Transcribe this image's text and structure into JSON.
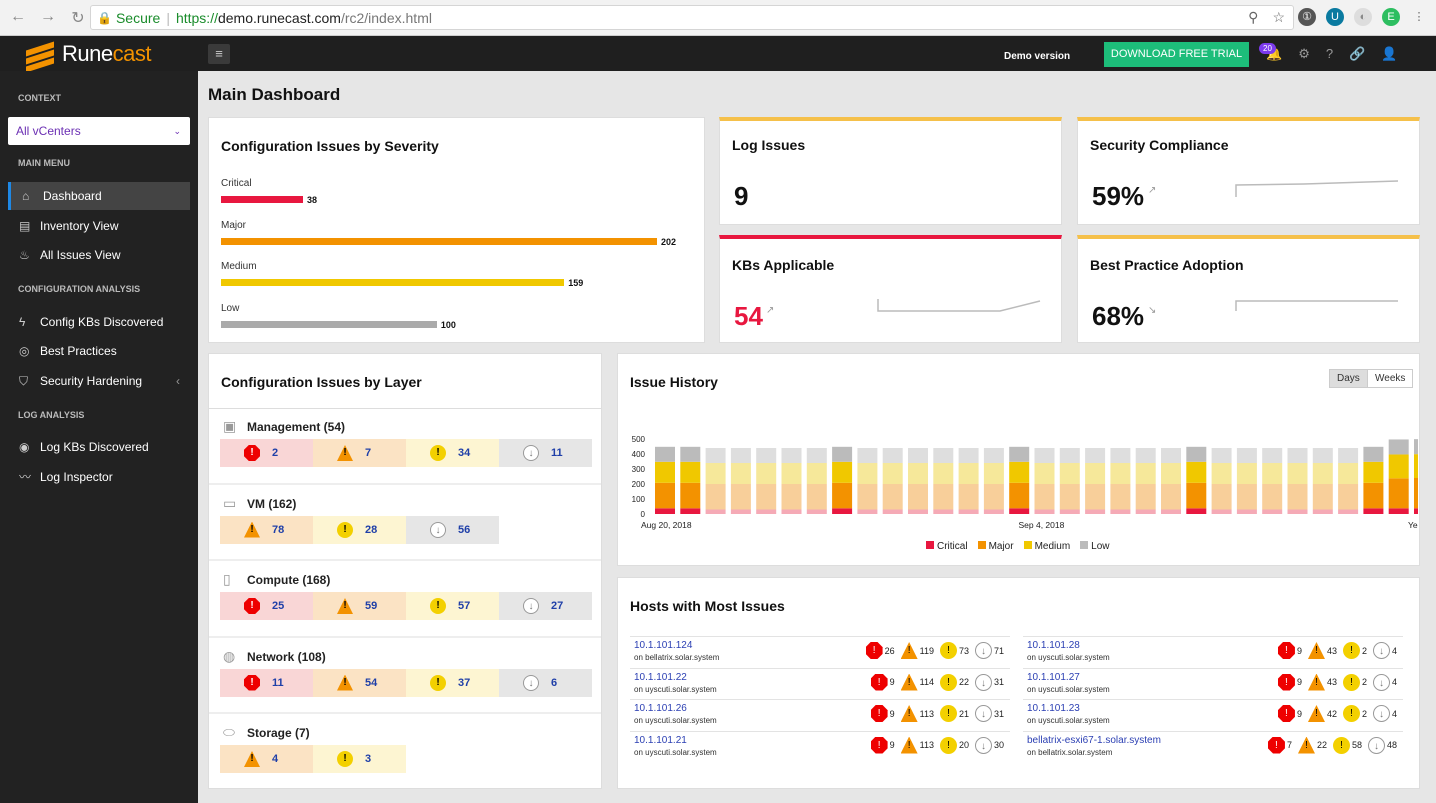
{
  "browser": {
    "secure_label": "Secure",
    "url_scheme": "https://",
    "url_host": "demo.runecast.com",
    "url_path": "/rc2/index.html"
  },
  "app": {
    "brand_a": "Rune",
    "brand_b": "cast",
    "demo_label": "Demo version",
    "trial_label": "DOWNLOAD FREE TRIAL",
    "notification_count": "20"
  },
  "sidebar": {
    "context_header": "CONTEXT",
    "context_value": "All vCenters",
    "main_menu_header": "MAIN MENU",
    "config_header": "CONFIGURATION ANALYSIS",
    "log_header": "LOG ANALYSIS",
    "items": [
      {
        "label": "Dashboard",
        "icon": "home-icon"
      },
      {
        "label": "Inventory View",
        "icon": "book-icon"
      },
      {
        "label": "All Issues View",
        "icon": "fire-icon"
      },
      {
        "label": "Config KBs Discovered",
        "icon": "bolt-icon"
      },
      {
        "label": "Best Practices",
        "icon": "compass-icon"
      },
      {
        "label": "Security Hardening",
        "icon": "shield-icon"
      },
      {
        "label": "Log KBs Discovered",
        "icon": "eye-icon"
      },
      {
        "label": "Log Inspector",
        "icon": "chart-line-icon"
      }
    ]
  },
  "page_title": "Main Dashboard",
  "severity": {
    "title": "Configuration Issues by Severity",
    "rows": [
      {
        "label": "Critical",
        "value": 38,
        "color": "#e8173f"
      },
      {
        "label": "Major",
        "value": 202,
        "color": "#f39200"
      },
      {
        "label": "Medium",
        "value": 159,
        "color": "#f0c800"
      },
      {
        "label": "Low",
        "value": 100,
        "color": "#aaaaaa"
      }
    ]
  },
  "kpis": {
    "log_title": "Log Issues",
    "log_value": "9",
    "sec_title": "Security Compliance",
    "sec_value": "59%",
    "kb_title": "KBs Applicable",
    "kb_value": "54",
    "bp_title": "Best Practice Adoption",
    "bp_value": "68%"
  },
  "layers": {
    "title": "Configuration Issues by Layer",
    "items": [
      {
        "name": "Management (54)",
        "cells": [
          [
            "crit",
            "2"
          ],
          [
            "maj",
            "7"
          ],
          [
            "med",
            "34"
          ],
          [
            "low",
            "11"
          ]
        ]
      },
      {
        "name": "VM (162)",
        "cells": [
          [
            "maj",
            "78"
          ],
          [
            "med",
            "28"
          ],
          [
            "low",
            "56"
          ]
        ]
      },
      {
        "name": "Compute (168)",
        "cells": [
          [
            "crit",
            "25"
          ],
          [
            "maj",
            "59"
          ],
          [
            "med",
            "57"
          ],
          [
            "low",
            "27"
          ]
        ]
      },
      {
        "name": "Network (108)",
        "cells": [
          [
            "crit",
            "11"
          ],
          [
            "maj",
            "54"
          ],
          [
            "med",
            "37"
          ],
          [
            "low",
            "6"
          ]
        ]
      },
      {
        "name": "Storage (7)",
        "cells": [
          [
            "maj",
            "4"
          ],
          [
            "med",
            "3"
          ]
        ]
      }
    ]
  },
  "history": {
    "title": "Issue History",
    "btn_days": "Days",
    "btn_weeks": "Weeks",
    "legend": [
      "Critical",
      "Major",
      "Medium",
      "Low"
    ]
  },
  "chart_data": {
    "type": "bar",
    "stacked": true,
    "yticks": [
      "0",
      "100",
      "200",
      "300",
      "400",
      "500"
    ],
    "ylim": [
      0,
      500
    ],
    "xlabels": [
      "Aug 20, 2018",
      "Sep 4, 2018",
      "Yesterday"
    ],
    "series": [
      {
        "name": "Critical",
        "color": "#e8173f",
        "values": [
          38,
          38,
          30,
          30,
          30,
          30,
          30,
          38,
          30,
          30,
          30,
          30,
          30,
          30,
          38,
          30,
          30,
          30,
          30,
          30,
          30,
          38,
          30,
          30,
          30,
          30,
          30,
          30,
          38,
          38,
          38
        ]
      },
      {
        "name": "Major",
        "color": "#f39200",
        "values": [
          170,
          170,
          170,
          170,
          170,
          170,
          170,
          170,
          170,
          170,
          170,
          170,
          170,
          170,
          170,
          170,
          170,
          170,
          170,
          170,
          170,
          170,
          170,
          170,
          170,
          170,
          170,
          170,
          170,
          200,
          202
        ]
      },
      {
        "name": "Medium",
        "color": "#f0c800",
        "values": [
          140,
          140,
          140,
          140,
          140,
          140,
          140,
          140,
          140,
          140,
          140,
          140,
          140,
          140,
          140,
          140,
          140,
          140,
          140,
          140,
          140,
          140,
          140,
          140,
          140,
          140,
          140,
          140,
          140,
          159,
          159
        ]
      },
      {
        "name": "Low",
        "color": "#bbbbbb",
        "values": [
          100,
          100,
          100,
          100,
          100,
          100,
          100,
          100,
          100,
          100,
          100,
          100,
          100,
          100,
          100,
          100,
          100,
          100,
          100,
          100,
          100,
          100,
          100,
          100,
          100,
          100,
          100,
          100,
          100,
          100,
          100
        ]
      }
    ],
    "highlighted": [
      0,
      1,
      7,
      14,
      21,
      28,
      29,
      30
    ]
  },
  "hosts": {
    "title": "Hosts with Most Issues",
    "left": [
      {
        "ip": "10.1.101.124",
        "on": "on bellatrix.solar.system",
        "v": [
          "26",
          "119",
          "73",
          "71"
        ]
      },
      {
        "ip": "10.1.101.22",
        "on": "on uyscuti.solar.system",
        "v": [
          "9",
          "114",
          "22",
          "31"
        ]
      },
      {
        "ip": "10.1.101.26",
        "on": "on uyscuti.solar.system",
        "v": [
          "9",
          "113",
          "21",
          "31"
        ]
      },
      {
        "ip": "10.1.101.21",
        "on": "on uyscuti.solar.system",
        "v": [
          "9",
          "113",
          "20",
          "30"
        ]
      }
    ],
    "right": [
      {
        "ip": "10.1.101.28",
        "on": "on uyscuti.solar.system",
        "v": [
          "9",
          "43",
          "2",
          "4"
        ]
      },
      {
        "ip": "10.1.101.27",
        "on": "on uyscuti.solar.system",
        "v": [
          "9",
          "43",
          "2",
          "4"
        ]
      },
      {
        "ip": "10.1.101.23",
        "on": "on uyscuti.solar.system",
        "v": [
          "9",
          "42",
          "2",
          "4"
        ]
      },
      {
        "ip": "bellatrix-esxi67-1.solar.system",
        "on": "on bellatrix.solar.system",
        "v": [
          "7",
          "22",
          "58",
          "48"
        ]
      }
    ]
  }
}
